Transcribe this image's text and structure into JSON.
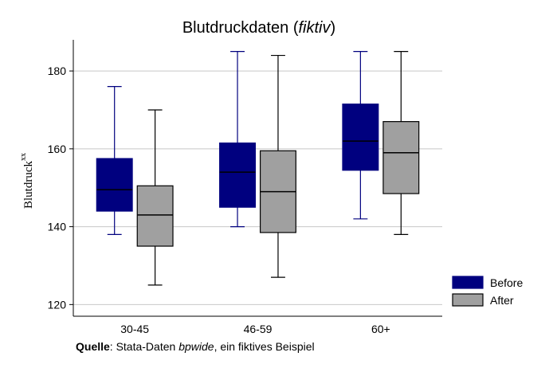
{
  "chart_data": {
    "type": "box",
    "title_main": "Blutdruckdaten",
    "title_italic": "fiktiv",
    "ylabel": "Blutdruck",
    "ylabel_superscript": "xx",
    "xlabel": "",
    "ylim": [
      117,
      188
    ],
    "yticks": [
      120,
      140,
      160,
      180
    ],
    "grid": true,
    "legend_position": "right-bottom",
    "categories": [
      "30-45",
      "46-59",
      "60+"
    ],
    "series": [
      {
        "name": "Before",
        "color": "#00007F",
        "line_color": "#00007F",
        "median_color": "#000000",
        "boxes": [
          {
            "min": 138,
            "q1": 144,
            "median": 149.5,
            "q3": 157.5,
            "max": 176
          },
          {
            "min": 140,
            "q1": 145,
            "median": 154,
            "q3": 161.5,
            "max": 185
          },
          {
            "min": 142,
            "q1": 154.5,
            "median": 162,
            "q3": 171.5,
            "max": 185
          }
        ]
      },
      {
        "name": "After",
        "color": "#A0A0A0",
        "line_color": "#000000",
        "median_color": "#000000",
        "boxes": [
          {
            "min": 125,
            "q1": 135,
            "median": 143,
            "q3": 150.5,
            "max": 170
          },
          {
            "min": 127,
            "q1": 138.5,
            "median": 149,
            "q3": 159.5,
            "max": 184
          },
          {
            "min": 138,
            "q1": 148.5,
            "median": 159,
            "q3": 167,
            "max": 185
          }
        ]
      }
    ]
  },
  "note": {
    "bold": "Quelle",
    "text1": ": Stata-Daten ",
    "italic": "bpwide",
    "text2": ", ein fiktives Beispiel"
  }
}
